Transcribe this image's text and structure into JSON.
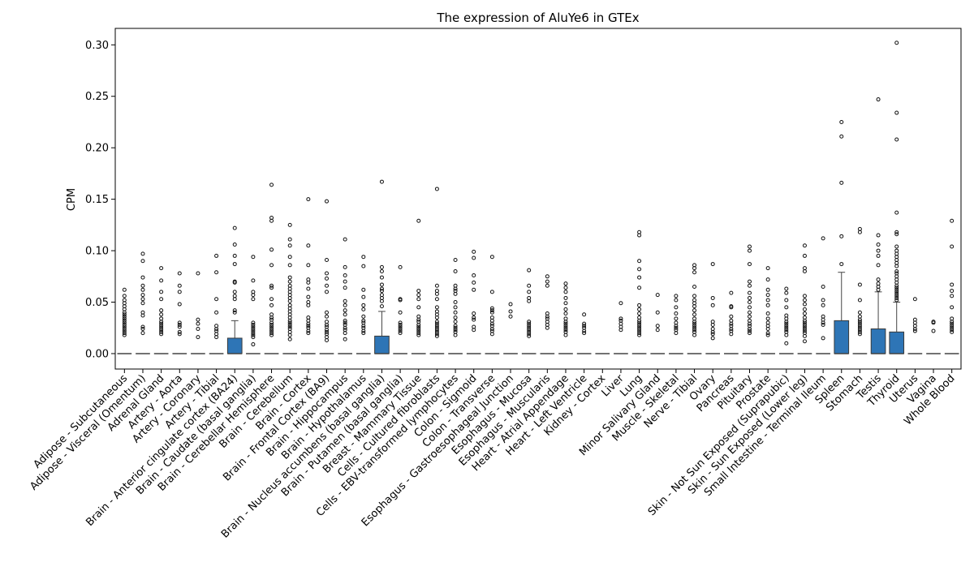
{
  "chart_data": {
    "type": "box",
    "title": "The expression of AluYe6 in GTEx",
    "xlabel": "",
    "ylabel": "CPM",
    "ylim": [
      -0.015,
      0.316
    ],
    "yticks": [
      0.0,
      0.05,
      0.1,
      0.15,
      0.2,
      0.25,
      0.3
    ],
    "ytick_labels": [
      "0.00",
      "0.05",
      "0.10",
      "0.15",
      "0.20",
      "0.25",
      "0.30"
    ],
    "box_color": "#2e75b6",
    "categories": [
      {
        "name": "Adipose - Subcutaneous",
        "q1": 0,
        "median": 0,
        "q3": 0,
        "whisker_high": 0,
        "outliers": [
          0.062,
          0.056,
          0.052,
          0.049,
          0.046,
          0.043,
          0.04,
          0.038,
          0.036,
          0.034,
          0.032,
          0.03,
          0.028,
          0.026,
          0.024,
          0.022,
          0.02,
          0.018
        ]
      },
      {
        "name": "Adipose - Visceral (Omentum)",
        "q1": 0,
        "median": 0,
        "q3": 0,
        "whisker_high": 0,
        "outliers": [
          0.097,
          0.09,
          0.074,
          0.066,
          0.062,
          0.057,
          0.053,
          0.049,
          0.04,
          0.037,
          0.026,
          0.024,
          0.02
        ]
      },
      {
        "name": "Adrenal Gland",
        "q1": 0,
        "median": 0,
        "q3": 0,
        "whisker_high": 0,
        "outliers": [
          0.083,
          0.071,
          0.06,
          0.053,
          0.042,
          0.038,
          0.034,
          0.031,
          0.029,
          0.027,
          0.025,
          0.023,
          0.021,
          0.019
        ]
      },
      {
        "name": "Artery - Aorta",
        "q1": 0,
        "median": 0,
        "q3": 0,
        "whisker_high": 0,
        "outliers": [
          0.078,
          0.066,
          0.06,
          0.048,
          0.03,
          0.028,
          0.026,
          0.021,
          0.019
        ]
      },
      {
        "name": "Artery - Coronary",
        "q1": 0,
        "median": 0,
        "q3": 0,
        "whisker_high": 0,
        "outliers": [
          0.078,
          0.033,
          0.029,
          0.024,
          0.016
        ]
      },
      {
        "name": "Artery - Tibial",
        "q1": 0,
        "median": 0,
        "q3": 0,
        "whisker_high": 0,
        "outliers": [
          0.095,
          0.079,
          0.053,
          0.04,
          0.027,
          0.024,
          0.022,
          0.019,
          0.016
        ]
      },
      {
        "name": "Brain - Anterior cingulate cortex (BA24)",
        "q1": 0,
        "median": 0,
        "q3": 0.015,
        "whisker_high": 0.032,
        "outliers": [
          0.122,
          0.106,
          0.095,
          0.087,
          0.07,
          0.069,
          0.06,
          0.056,
          0.053,
          0.042,
          0.04
        ]
      },
      {
        "name": "Brain - Caudate (basal ganglia)",
        "q1": 0,
        "median": 0,
        "q3": 0,
        "whisker_high": 0,
        "outliers": [
          0.094,
          0.071,
          0.06,
          0.057,
          0.053,
          0.03,
          0.028,
          0.026,
          0.024,
          0.022,
          0.02,
          0.018,
          0.016,
          0.009
        ]
      },
      {
        "name": "Brain - Cerebellar Hemisphere",
        "q1": 0,
        "median": 0,
        "q3": 0,
        "whisker_high": 0,
        "outliers": [
          0.164,
          0.132,
          0.129,
          0.101,
          0.086,
          0.066,
          0.064,
          0.053,
          0.047,
          0.038,
          0.035,
          0.033,
          0.03,
          0.028,
          0.026,
          0.024,
          0.022,
          0.02,
          0.018
        ]
      },
      {
        "name": "Brain - Cerebellum",
        "q1": 0,
        "median": 0,
        "q3": 0,
        "whisker_high": 0,
        "outliers": [
          0.125,
          0.111,
          0.105,
          0.094,
          0.086,
          0.074,
          0.07,
          0.066,
          0.063,
          0.06,
          0.057,
          0.054,
          0.051,
          0.047,
          0.044,
          0.041,
          0.038,
          0.035,
          0.032,
          0.03,
          0.028,
          0.026,
          0.024,
          0.021,
          0.018,
          0.014
        ]
      },
      {
        "name": "Brain - Cortex",
        "q1": 0,
        "median": 0,
        "q3": 0,
        "whisker_high": 0,
        "outliers": [
          0.15,
          0.105,
          0.086,
          0.072,
          0.069,
          0.063,
          0.055,
          0.05,
          0.047,
          0.035,
          0.032,
          0.029,
          0.027,
          0.025,
          0.022,
          0.02
        ]
      },
      {
        "name": "Brain - Frontal Cortex (BA9)",
        "q1": 0,
        "median": 0,
        "q3": 0,
        "whisker_high": 0,
        "outliers": [
          0.148,
          0.091,
          0.078,
          0.073,
          0.066,
          0.06,
          0.04,
          0.036,
          0.031,
          0.028,
          0.026,
          0.023,
          0.021,
          0.019,
          0.016,
          0.013
        ]
      },
      {
        "name": "Brain - Hippocampus",
        "q1": 0,
        "median": 0,
        "q3": 0,
        "whisker_high": 0,
        "outliers": [
          0.111,
          0.084,
          0.076,
          0.07,
          0.064,
          0.051,
          0.047,
          0.042,
          0.038,
          0.032,
          0.03,
          0.028,
          0.025,
          0.023,
          0.02,
          0.014
        ]
      },
      {
        "name": "Brain - Hypothalamus",
        "q1": 0,
        "median": 0,
        "q3": 0,
        "whisker_high": 0,
        "outliers": [
          0.094,
          0.085,
          0.062,
          0.055,
          0.047,
          0.043,
          0.036,
          0.032,
          0.03,
          0.027,
          0.025,
          0.022,
          0.02
        ]
      },
      {
        "name": "Brain - Nucleus accumbens (basal ganglia)",
        "q1": 0,
        "median": 0,
        "q3": 0.017,
        "whisker_high": 0.041,
        "outliers": [
          0.167,
          0.084,
          0.08,
          0.074,
          0.067,
          0.063,
          0.061,
          0.057,
          0.054,
          0.051,
          0.046
        ]
      },
      {
        "name": "Brain - Putamen (basal ganglia)",
        "q1": 0,
        "median": 0,
        "q3": 0,
        "whisker_high": 0,
        "outliers": [
          0.084,
          0.053,
          0.052,
          0.04,
          0.03,
          0.028,
          0.026,
          0.024,
          0.022,
          0.02
        ]
      },
      {
        "name": "Breast - Mammary Tissue",
        "q1": 0,
        "median": 0,
        "q3": 0,
        "whisker_high": 0,
        "outliers": [
          0.129,
          0.061,
          0.057,
          0.053,
          0.045,
          0.036,
          0.033,
          0.031,
          0.028,
          0.026,
          0.024,
          0.022,
          0.02,
          0.018
        ]
      },
      {
        "name": "Cells - Cultured fibroblasts",
        "q1": 0,
        "median": 0,
        "q3": 0,
        "whisker_high": 0,
        "outliers": [
          0.16,
          0.066,
          0.061,
          0.058,
          0.053,
          0.045,
          0.041,
          0.038,
          0.035,
          0.031,
          0.029,
          0.027,
          0.025,
          0.023,
          0.021,
          0.019,
          0.017
        ]
      },
      {
        "name": "Cells - EBV-transformed lymphocytes",
        "q1": 0,
        "median": 0,
        "q3": 0,
        "whisker_high": 0,
        "outliers": [
          0.091,
          0.08,
          0.066,
          0.063,
          0.061,
          0.058,
          0.05,
          0.045,
          0.04,
          0.035,
          0.031,
          0.027,
          0.025,
          0.023,
          0.021,
          0.018
        ]
      },
      {
        "name": "Colon - Sigmoid",
        "q1": 0,
        "median": 0,
        "q3": 0,
        "whisker_high": 0,
        "outliers": [
          0.099,
          0.093,
          0.076,
          0.069,
          0.062,
          0.039,
          0.035,
          0.033,
          0.026,
          0.023
        ]
      },
      {
        "name": "Colon - Transverse",
        "q1": 0,
        "median": 0,
        "q3": 0,
        "whisker_high": 0,
        "outliers": [
          0.094,
          0.06,
          0.044,
          0.042,
          0.04,
          0.035,
          0.032,
          0.029,
          0.027,
          0.024,
          0.022,
          0.019
        ]
      },
      {
        "name": "Esophagus - Gastroesophageal Junction",
        "q1": 0,
        "median": 0,
        "q3": 0,
        "whisker_high": 0,
        "outliers": [
          0.048,
          0.041,
          0.036
        ]
      },
      {
        "name": "Esophagus - Mucosa",
        "q1": 0,
        "median": 0,
        "q3": 0,
        "whisker_high": 0,
        "outliers": [
          0.081,
          0.066,
          0.06,
          0.054,
          0.051,
          0.031,
          0.029,
          0.027,
          0.025,
          0.023,
          0.021,
          0.019,
          0.017
        ]
      },
      {
        "name": "Esophagus - Muscularis",
        "q1": 0,
        "median": 0,
        "q3": 0,
        "whisker_high": 0,
        "outliers": [
          0.075,
          0.07,
          0.066,
          0.039,
          0.036,
          0.034,
          0.031,
          0.028,
          0.025
        ]
      },
      {
        "name": "Heart - Atrial Appendage",
        "q1": 0,
        "median": 0,
        "q3": 0,
        "whisker_high": 0,
        "outliers": [
          0.068,
          0.064,
          0.06,
          0.054,
          0.049,
          0.043,
          0.039,
          0.034,
          0.031,
          0.029,
          0.027,
          0.025,
          0.023,
          0.021,
          0.018
        ]
      },
      {
        "name": "Heart - Left Ventricle",
        "q1": 0,
        "median": 0,
        "q3": 0,
        "whisker_high": 0,
        "outliers": [
          0.038,
          0.029,
          0.027,
          0.025,
          0.022,
          0.02
        ]
      },
      {
        "name": "Kidney - Cortex",
        "q1": 0,
        "median": 0,
        "q3": 0,
        "whisker_high": 0,
        "outliers": []
      },
      {
        "name": "Liver",
        "q1": 0,
        "median": 0,
        "q3": 0,
        "whisker_high": 0,
        "outliers": [
          0.049,
          0.034,
          0.032,
          0.029,
          0.026,
          0.023
        ]
      },
      {
        "name": "Lung",
        "q1": 0,
        "median": 0,
        "q3": 0,
        "whisker_high": 0,
        "outliers": [
          0.118,
          0.115,
          0.09,
          0.082,
          0.074,
          0.064,
          0.047,
          0.043,
          0.039,
          0.035,
          0.032,
          0.03,
          0.028,
          0.026,
          0.024,
          0.022,
          0.02,
          0.018
        ]
      },
      {
        "name": "Minor Salivary Gland",
        "q1": 0,
        "median": 0,
        "q3": 0,
        "whisker_high": 0,
        "outliers": [
          0.057,
          0.04,
          0.027,
          0.023
        ]
      },
      {
        "name": "Muscle - Skeletal",
        "q1": 0,
        "median": 0,
        "q3": 0,
        "whisker_high": 0,
        "outliers": [
          0.056,
          0.052,
          0.045,
          0.039,
          0.034,
          0.03,
          0.027,
          0.025,
          0.023,
          0.02
        ]
      },
      {
        "name": "Nerve - Tibial",
        "q1": 0,
        "median": 0,
        "q3": 0,
        "whisker_high": 0,
        "outliers": [
          0.086,
          0.083,
          0.079,
          0.065,
          0.056,
          0.052,
          0.049,
          0.046,
          0.042,
          0.038,
          0.034,
          0.031,
          0.029,
          0.027,
          0.025,
          0.023,
          0.021,
          0.018
        ]
      },
      {
        "name": "Ovary",
        "q1": 0,
        "median": 0,
        "q3": 0,
        "whisker_high": 0,
        "outliers": [
          0.087,
          0.054,
          0.047,
          0.031,
          0.028,
          0.024,
          0.021,
          0.019,
          0.015
        ]
      },
      {
        "name": "Pancreas",
        "q1": 0,
        "median": 0,
        "q3": 0,
        "whisker_high": 0,
        "outliers": [
          0.059,
          0.046,
          0.045,
          0.036,
          0.032,
          0.029,
          0.027,
          0.024,
          0.022,
          0.019
        ]
      },
      {
        "name": "Pituitary",
        "q1": 0,
        "median": 0,
        "q3": 0,
        "whisker_high": 0,
        "outliers": [
          0.104,
          0.1,
          0.087,
          0.07,
          0.066,
          0.059,
          0.054,
          0.05,
          0.045,
          0.04,
          0.036,
          0.032,
          0.029,
          0.027,
          0.024,
          0.022,
          0.02
        ]
      },
      {
        "name": "Prostate",
        "q1": 0,
        "median": 0,
        "q3": 0,
        "whisker_high": 0,
        "outliers": [
          0.083,
          0.072,
          0.062,
          0.057,
          0.052,
          0.047,
          0.039,
          0.034,
          0.03,
          0.027,
          0.024,
          0.02,
          0.018
        ]
      },
      {
        "name": "Skin - Not Sun Exposed (Suprapubic)",
        "q1": 0,
        "median": 0,
        "q3": 0,
        "whisker_high": 0,
        "outliers": [
          0.063,
          0.059,
          0.052,
          0.045,
          0.037,
          0.034,
          0.031,
          0.029,
          0.027,
          0.025,
          0.023,
          0.021,
          0.018,
          0.01
        ]
      },
      {
        "name": "Skin - Sun Exposed (Lower leg)",
        "q1": 0,
        "median": 0,
        "q3": 0,
        "whisker_high": 0,
        "outliers": [
          0.105,
          0.095,
          0.083,
          0.08,
          0.056,
          0.052,
          0.048,
          0.043,
          0.039,
          0.035,
          0.032,
          0.03,
          0.028,
          0.026,
          0.024,
          0.022,
          0.02,
          0.017,
          0.012
        ]
      },
      {
        "name": "Small Intestine - Terminal Ileum",
        "q1": 0,
        "median": 0,
        "q3": 0,
        "whisker_high": 0,
        "outliers": [
          0.112,
          0.065,
          0.052,
          0.047,
          0.036,
          0.033,
          0.03,
          0.028,
          0.015
        ]
      },
      {
        "name": "Spleen",
        "q1": 0,
        "median": 0,
        "q3": 0.032,
        "whisker_high": 0.079,
        "outliers": [
          0.225,
          0.211,
          0.166,
          0.114,
          0.087
        ]
      },
      {
        "name": "Stomach",
        "q1": 0,
        "median": 0,
        "q3": 0,
        "whisker_high": 0,
        "outliers": [
          0.121,
          0.118,
          0.067,
          0.052,
          0.04,
          0.036,
          0.033,
          0.031,
          0.029,
          0.027,
          0.025,
          0.023,
          0.021,
          0.019
        ]
      },
      {
        "name": "Testis",
        "q1": 0,
        "median": 0,
        "q3": 0.024,
        "whisker_high": 0.06,
        "outliers": [
          0.247,
          0.115,
          0.106,
          0.1,
          0.095,
          0.086,
          0.072,
          0.068,
          0.065,
          0.062
        ]
      },
      {
        "name": "Thyroid",
        "q1": 0,
        "median": 0,
        "q3": 0.021,
        "whisker_high": 0.05,
        "outliers": [
          0.302,
          0.234,
          0.208,
          0.137,
          0.118,
          0.116,
          0.104,
          0.1,
          0.097,
          0.094,
          0.091,
          0.088,
          0.085,
          0.08,
          0.078,
          0.075,
          0.072,
          0.069,
          0.066,
          0.064,
          0.062,
          0.06,
          0.058,
          0.056,
          0.054,
          0.052
        ]
      },
      {
        "name": "Uterus",
        "q1": 0,
        "median": 0,
        "q3": 0,
        "whisker_high": 0,
        "outliers": [
          0.053,
          0.033,
          0.03,
          0.027,
          0.024,
          0.022
        ]
      },
      {
        "name": "Vagina",
        "q1": 0,
        "median": 0,
        "q3": 0,
        "whisker_high": 0,
        "outliers": [
          0.031,
          0.03,
          0.022
        ]
      },
      {
        "name": "Whole Blood",
        "q1": 0,
        "median": 0,
        "q3": 0,
        "whisker_high": 0,
        "outliers": [
          0.129,
          0.104,
          0.067,
          0.061,
          0.056,
          0.045,
          0.034,
          0.031,
          0.029,
          0.027,
          0.025,
          0.023,
          0.021
        ]
      }
    ]
  }
}
